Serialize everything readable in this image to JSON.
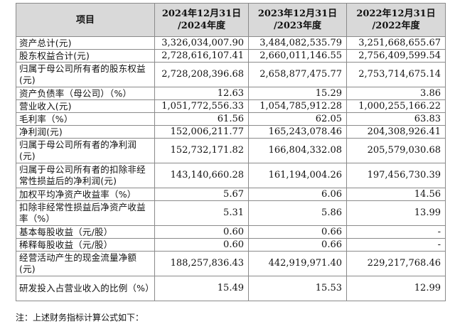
{
  "header": {
    "item": "项目",
    "col2024_line1": "2024年12月31日",
    "col2024_line2": "/2024年度",
    "col2023_line1": "2023年12月31日",
    "col2023_line2": "/2023年度",
    "col2022_line1": "2022年12月31日",
    "col2022_line2": "/2022年度"
  },
  "rows": [
    {
      "label": "资产总计(元)",
      "y2024": "3,326,034,007.90",
      "y2023": "3,484,082,535.79",
      "y2022": "3,251,668,655.67"
    },
    {
      "label": "股东权益合计(元)",
      "y2024": "2,728,616,107.41",
      "y2023": "2,660,011,146.55",
      "y2022": "2,756,409,599.54"
    },
    {
      "label": "归属于母公司所有者的股东权益(元)",
      "y2024": "2,728,208,396.68",
      "y2023": "2,658,877,475.77",
      "y2022": "2,753,714,675.14"
    },
    {
      "label": "资产负债率（母公司）（%）",
      "y2024": "12.63",
      "y2023": "15.29",
      "y2022": "3.86"
    },
    {
      "label": "营业收入(元)",
      "y2024": "1,051,772,556.33",
      "y2023": "1,054,785,912.28",
      "y2022": "1,000,255,166.22"
    },
    {
      "label": "毛利率（%）",
      "y2024": "61.56",
      "y2023": "62.05",
      "y2022": "63.83"
    },
    {
      "label": "净利润(元)",
      "y2024": "152,006,211.77",
      "y2023": "165,243,078.46",
      "y2022": "204,308,926.41"
    },
    {
      "label": "归属于母公司所有者的净利润(元)",
      "y2024": "152,732,171.82",
      "y2023": "166,804,332.08",
      "y2022": "205,579,030.68"
    },
    {
      "label": "归属于母公司所有者的扣除非经常性损益后的净利润(元)",
      "y2024": "143,140,660.28",
      "y2023": "161,194,004.26",
      "y2022": "197,456,730.39"
    },
    {
      "label": "加权平均净资产收益率（%）",
      "y2024": "5.67",
      "y2023": "6.06",
      "y2022": "14.56"
    },
    {
      "label": "扣除非经常性损益后净资产收益率（%）",
      "y2024": "5.31",
      "y2023": "5.86",
      "y2022": "13.99"
    },
    {
      "label": "基本每股收益（元/股）",
      "y2024": "0.60",
      "y2023": "0.66",
      "y2022": "-"
    },
    {
      "label": "稀释每股收益（元/股）",
      "y2024": "0.60",
      "y2023": "0.66",
      "y2022": "-"
    },
    {
      "label": "经营活动产生的现金流量净额(元)",
      "y2024": "188,257,836.43",
      "y2023": "442,919,971.40",
      "y2022": "229,217,768.46"
    },
    {
      "label": "研发投入占营业收入的比例（%）",
      "y2024": "15.49",
      "y2023": "15.53",
      "y2022": "12.99"
    }
  ],
  "note": "注：上述财务指标计算公式如下："
}
